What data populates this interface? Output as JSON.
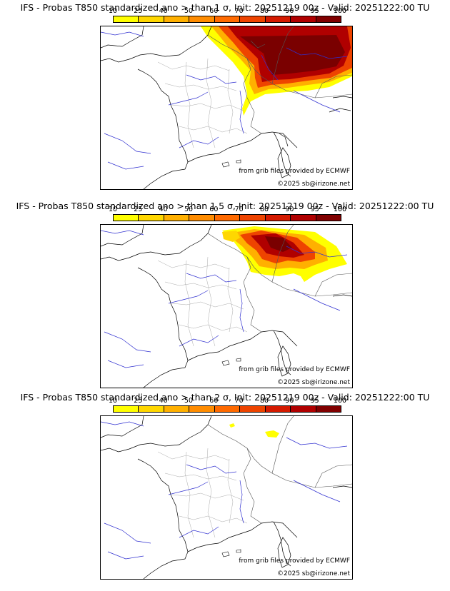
{
  "colorbar": {
    "ticks": [
      "10",
      "25",
      "40",
      "50",
      "60",
      "70",
      "80",
      "90",
      "95",
      "100"
    ],
    "colors": [
      "#ffff00",
      "#ffd700",
      "#ffb000",
      "#ff8c00",
      "#ff6a00",
      "#ee4400",
      "#d41a00",
      "#b00000",
      "#800000"
    ]
  },
  "panels": [
    {
      "title": "IFS - Probas T850  standardized ano > than 1 σ, Init: 20251219 00z - Valid: 20251222:00 TU",
      "threshold": "1 σ"
    },
    {
      "title": "IFS - Probas T850  standardized ano > than 1.5 σ, Init: 20251219 00z - Valid: 20251222:00 TU",
      "threshold": "1.5 σ"
    },
    {
      "title": "IFS - Probas T850  standardized ano > than 2 σ, Init: 20251219 00z - Valid: 20251222:00 TU",
      "threshold": "2 σ"
    }
  ],
  "credits": {
    "source": "from grib files provided by ECMWF",
    "copyright": "©2025 sb@irizone.net"
  }
}
